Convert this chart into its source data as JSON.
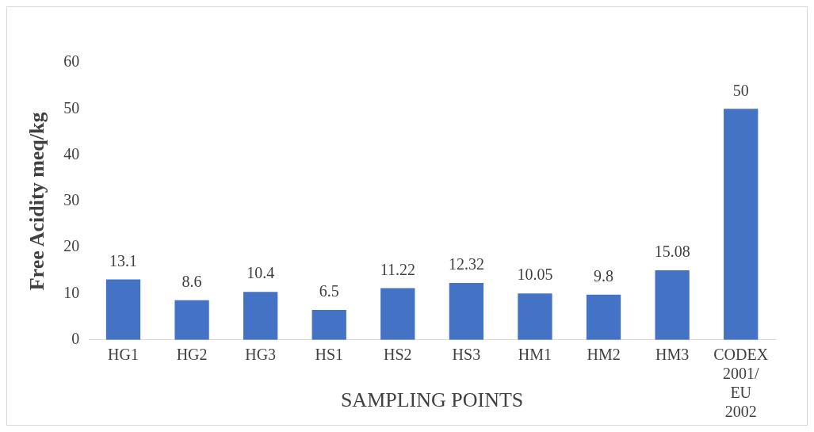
{
  "chart_data": {
    "type": "bar",
    "xlabel": "SAMPLING POINTS",
    "ylabel": "Free Acidity meq/kg",
    "categories": [
      "HG1",
      "HG2",
      "HG3",
      "HS1",
      "HS2",
      "HS3",
      "HM1",
      "HM2",
      "HM3",
      "CODEX 2001/ EU 2002"
    ],
    "values": [
      13.1,
      8.6,
      10.4,
      6.5,
      11.22,
      12.32,
      10.05,
      9.8,
      15.08,
      50
    ],
    "color": "#4472c4",
    "ylim": [
      0,
      60
    ],
    "yticks": [
      0,
      10,
      20,
      30,
      40,
      50,
      60
    ],
    "grid": false,
    "legend": false,
    "data_labels": true
  }
}
